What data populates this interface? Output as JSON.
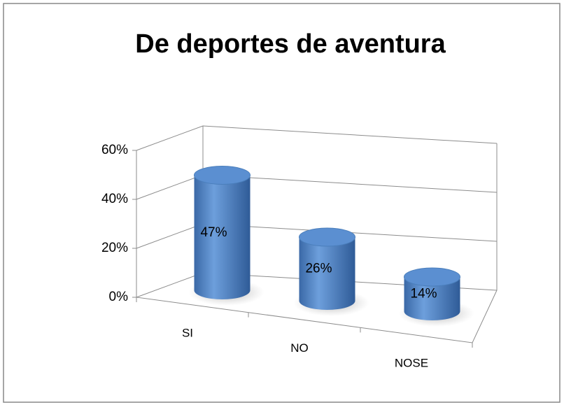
{
  "chart_data": {
    "type": "bar3d",
    "title": "De deportes de aventura",
    "categories": [
      "SI",
      "NO",
      "NOSE"
    ],
    "values": [
      47,
      26,
      14
    ],
    "value_labels": [
      "47%",
      "26%",
      "14%"
    ],
    "color": "#4a7ebb",
    "ylim": [
      0,
      60
    ],
    "yticks": [
      {
        "value": 0,
        "label": "0%"
      },
      {
        "value": 20,
        "label": "20%"
      },
      {
        "value": 40,
        "label": "40%"
      },
      {
        "value": 60,
        "label": "60%"
      }
    ],
    "grid": true
  }
}
